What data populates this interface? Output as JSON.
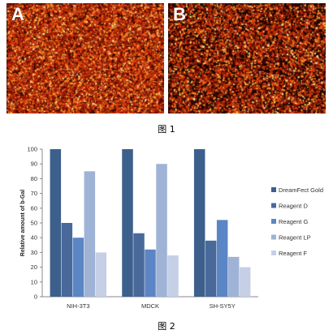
{
  "panels": [
    {
      "label": "A"
    },
    {
      "label": "B"
    }
  ],
  "captions": {
    "figure1": "图 1",
    "figure2": "图 2"
  },
  "chart_data": {
    "type": "bar",
    "categories": [
      "NIH-3T3",
      "MDCK",
      "SH-SY5Y"
    ],
    "series": [
      {
        "name": "DreamFect Gold",
        "color": "#3d5f8c",
        "values": [
          100,
          100,
          100
        ]
      },
      {
        "name": "Reagent D",
        "color": "#48699a",
        "values": [
          50,
          43,
          38
        ]
      },
      {
        "name": "Reagent G",
        "color": "#5b85c4",
        "values": [
          40,
          32,
          52
        ]
      },
      {
        "name": "Reagent LP",
        "color": "#9fb3d6",
        "values": [
          85,
          90,
          27
        ]
      },
      {
        "name": "Reagent F",
        "color": "#c5d0e6",
        "values": [
          30,
          28,
          20
        ]
      }
    ],
    "ylabel": "Relative amount of b-Gal",
    "ylim": [
      0,
      100
    ],
    "yticks": [
      0,
      10,
      20,
      30,
      40,
      50,
      60,
      70,
      80,
      90,
      100
    ],
    "grid": false,
    "legend": "right"
  }
}
